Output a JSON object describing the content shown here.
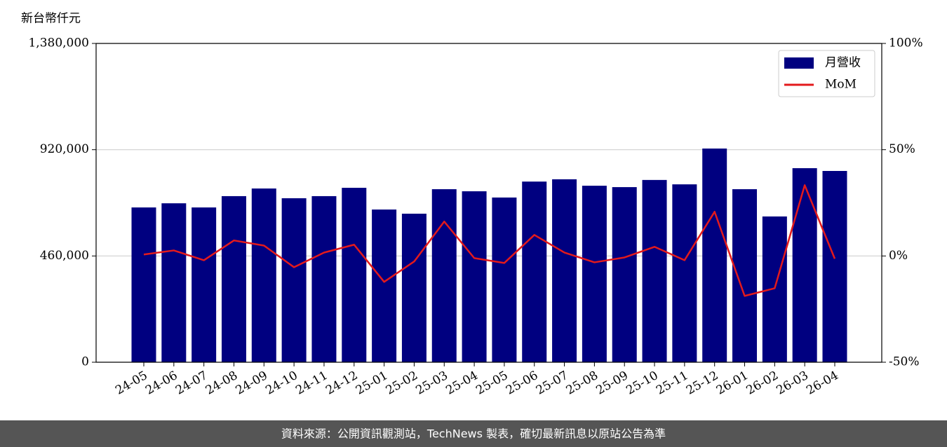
{
  "chart_data": {
    "type": "bar+line",
    "y_label": "新台幣仟元",
    "categories": [
      "24-05",
      "24-06",
      "24-07",
      "24-08",
      "24-09",
      "24-10",
      "24-11",
      "24-12",
      "25-01",
      "25-02",
      "25-03",
      "25-04",
      "25-05",
      "25-06",
      "25-07",
      "25-08",
      "25-09",
      "25-10",
      "25-11",
      "25-12",
      "26-01",
      "26-02",
      "26-03",
      "26-04"
    ],
    "series": [
      {
        "name": "月營收",
        "type": "bar",
        "color": "#000080",
        "values": [
          670000,
          688000,
          670000,
          719000,
          752000,
          710000,
          719000,
          755000,
          661000,
          643000,
          749000,
          740000,
          713000,
          782000,
          792000,
          764000,
          758000,
          789000,
          770000,
          925000,
          749000,
          631000,
          840000,
          828000
        ]
      },
      {
        "name": "MoM",
        "type": "line",
        "axis": "y2",
        "color": "#e31a1c",
        "values": [
          0.7,
          2.6,
          -2.0,
          7.3,
          4.9,
          -5.3,
          1.6,
          5.3,
          -12.2,
          -2.6,
          16.2,
          -1.0,
          -3.3,
          9.9,
          1.6,
          -3.0,
          -0.7,
          4.3,
          -2.0,
          20.8,
          -18.8,
          -15.2,
          33.3,
          -1.3
        ]
      }
    ],
    "ylim": [
      0,
      1380000
    ],
    "yticks": [
      {
        "value": 0,
        "label": "0"
      },
      {
        "value": 460000,
        "label": "460,000"
      },
      {
        "value": 920000,
        "label": "920,000"
      },
      {
        "value": 1380000,
        "label": "1,380,000"
      }
    ],
    "y2lim": [
      -50,
      100
    ],
    "y2ticks": [
      {
        "value": -50,
        "label": "-50%"
      },
      {
        "value": 0,
        "label": "0%"
      },
      {
        "value": 50,
        "label": "50%"
      },
      {
        "value": 100,
        "label": "100%"
      }
    ],
    "grid": true,
    "legend": "upper right",
    "footer": "資料來源：公開資訊觀測站，TechNews 製表，確切最新訊息以原站公告為準"
  }
}
